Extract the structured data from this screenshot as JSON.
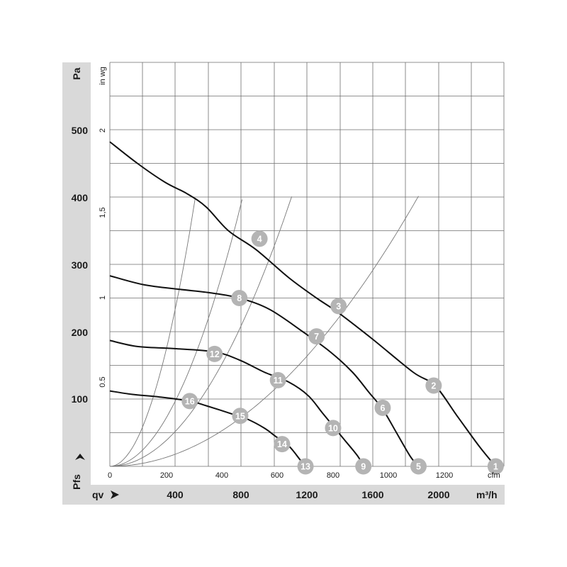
{
  "chart_data": {
    "type": "line",
    "axes": {
      "y_primary": {
        "label": "Pa",
        "ticks": [
          "100",
          "200",
          "300",
          "400",
          "500"
        ],
        "range": [
          0,
          600
        ]
      },
      "y_secondary": {
        "label": "in wg",
        "ticks": [
          "0.5",
          "1",
          "1,5",
          "2"
        ]
      },
      "x_primary": {
        "label": "m³/h",
        "ticks": [
          "400",
          "800",
          "1200",
          "1600",
          "2000"
        ]
      },
      "x_secondary": {
        "label": "cfm",
        "ticks": [
          "0",
          "200",
          "400",
          "600",
          "800",
          "1000",
          "1200"
        ],
        "range": [
          0,
          1430
        ]
      },
      "pressure_label": "Pfs",
      "flow_label": "qv"
    },
    "grid": true,
    "fan_curves": [
      {
        "points": [
          [
            0,
            482
          ],
          [
            100,
            450
          ],
          [
            200,
            422
          ],
          [
            280,
            405
          ],
          [
            350,
            385
          ],
          [
            430,
            350
          ],
          [
            530,
            322
          ],
          [
            650,
            280
          ],
          [
            750,
            250
          ],
          [
            830,
            228
          ],
          [
            950,
            190
          ],
          [
            1100,
            140
          ],
          [
            1180,
            120
          ],
          [
            1260,
            75
          ],
          [
            1340,
            30
          ],
          [
            1400,
            0
          ]
        ]
      },
      {
        "points": [
          [
            0,
            283
          ],
          [
            120,
            270
          ],
          [
            250,
            263
          ],
          [
            360,
            258
          ],
          [
            470,
            250
          ],
          [
            580,
            233
          ],
          [
            700,
            200
          ],
          [
            800,
            170
          ],
          [
            880,
            140
          ],
          [
            940,
            110
          ],
          [
            990,
            85
          ],
          [
            1040,
            50
          ],
          [
            1090,
            15
          ],
          [
            1120,
            0
          ]
        ]
      },
      {
        "points": [
          [
            0,
            187
          ],
          [
            100,
            178
          ],
          [
            230,
            175
          ],
          [
            380,
            170
          ],
          [
            470,
            158
          ],
          [
            560,
            140
          ],
          [
            650,
            125
          ],
          [
            720,
            105
          ],
          [
            770,
            80
          ],
          [
            810,
            60
          ],
          [
            850,
            40
          ],
          [
            900,
            15
          ],
          [
            920,
            0
          ]
        ]
      },
      {
        "points": [
          [
            0,
            112
          ],
          [
            80,
            107
          ],
          [
            180,
            103
          ],
          [
            290,
            97
          ],
          [
            350,
            90
          ],
          [
            450,
            77
          ],
          [
            500,
            70
          ],
          [
            560,
            57
          ],
          [
            600,
            45
          ],
          [
            650,
            30
          ],
          [
            690,
            10
          ],
          [
            710,
            0
          ]
        ]
      }
    ],
    "system_curves": [
      {
        "k": 0.00032
      },
      {
        "k": 0.00092
      },
      {
        "k": 0.00172
      },
      {
        "k": 0.00415
      }
    ],
    "markers": [
      {
        "label": "1",
        "x": 1400,
        "y": 0
      },
      {
        "label": "2",
        "x": 1175,
        "y": 120
      },
      {
        "label": "3",
        "x": 830,
        "y": 238
      },
      {
        "label": "4",
        "x": 543,
        "y": 338
      },
      {
        "label": "5",
        "x": 1120,
        "y": 0
      },
      {
        "label": "6",
        "x": 990,
        "y": 87
      },
      {
        "label": "7",
        "x": 750,
        "y": 193
      },
      {
        "label": "8",
        "x": 470,
        "y": 250
      },
      {
        "label": "9",
        "x": 920,
        "y": 0
      },
      {
        "label": "10",
        "x": 810,
        "y": 57
      },
      {
        "label": "11",
        "x": 610,
        "y": 128
      },
      {
        "label": "12",
        "x": 380,
        "y": 167
      },
      {
        "label": "13",
        "x": 710,
        "y": 0
      },
      {
        "label": "14",
        "x": 625,
        "y": 33
      },
      {
        "label": "15",
        "x": 473,
        "y": 75
      },
      {
        "label": "16",
        "x": 290,
        "y": 97
      }
    ]
  }
}
